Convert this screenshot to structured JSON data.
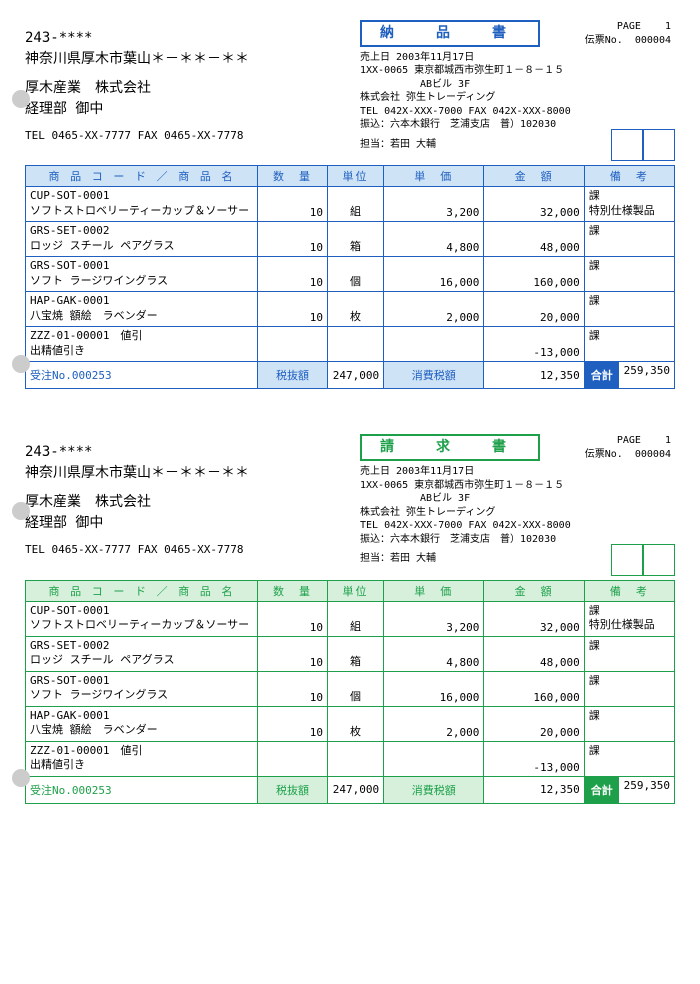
{
  "docs": [
    {
      "theme": "blue",
      "title": "納　品　書"
    },
    {
      "theme": "green",
      "title": "請　求　書"
    }
  ],
  "page_label": "PAGE",
  "page_no": "1",
  "slip_label": "伝票No.",
  "slip_no": "000004",
  "sale_date_label": "売上日",
  "sale_date": "2003年11月17日",
  "left": {
    "postal": "243-****",
    "addr": "神奈川県厚木市葉山＊－＊＊－＊＊",
    "company": "厚木産業　株式会社",
    "dept": "経理部 御中",
    "tel": "TEL 0465-XX-7777    FAX 0465-XX-7778"
  },
  "right": {
    "line1": "1XX-0065 東京都城西市弥生町１－８－１５",
    "line2": "ABビル 3F",
    "line3": "株式会社 弥生トレーディング",
    "line4": "TEL 042X-XXX-7000 FAX 042X-XXX-8000",
    "line5": "振込：六本木銀行　芝浦支店　普）102030",
    "contact_label": "担当：",
    "contact": "若田 大輔"
  },
  "headers": {
    "code": "商 品 コ ー ド ／ 商 品 名",
    "qty": "数　量",
    "unit": "単位",
    "price": "単　価",
    "amount": "金　額",
    "note": "備　考"
  },
  "rows": [
    {
      "code": "CUP-SOT-0001",
      "name": "ソフトストロベリーティーカップ＆ソーサー",
      "qty": "10",
      "unit": "組",
      "price": "3,200",
      "amount": "32,000",
      "note1": "課",
      "note2": "特別仕様製品"
    },
    {
      "code": "GRS-SET-0002",
      "name": "ロッジ スチール ペアグラス",
      "qty": "10",
      "unit": "箱",
      "price": "4,800",
      "amount": "48,000",
      "note1": "課",
      "note2": ""
    },
    {
      "code": "GRS-SOT-0001",
      "name": "ソフト ラージワイングラス",
      "qty": "10",
      "unit": "個",
      "price": "16,000",
      "amount": "160,000",
      "note1": "課",
      "note2": ""
    },
    {
      "code": "HAP-GAK-0001",
      "name": "八宝焼 額絵　ラベンダー",
      "qty": "10",
      "unit": "枚",
      "price": "2,000",
      "amount": "20,000",
      "note1": "課",
      "note2": ""
    },
    {
      "code": "ZZZ-01-00001　値引",
      "name": "出精値引き",
      "qty": "",
      "unit": "",
      "price": "",
      "amount": "-13,000",
      "note1": "課",
      "note2": ""
    }
  ],
  "footer": {
    "order_label": "受注No.",
    "order_no": "000253",
    "subtotal_label": "税抜額",
    "subtotal": "247,000",
    "tax_label": "消費税額",
    "tax": "12,350",
    "total_label": "合計",
    "total": "259,350"
  },
  "punch_positions": {
    "blue": [
      90,
      355
    ],
    "green": [
      563,
      830
    ]
  }
}
